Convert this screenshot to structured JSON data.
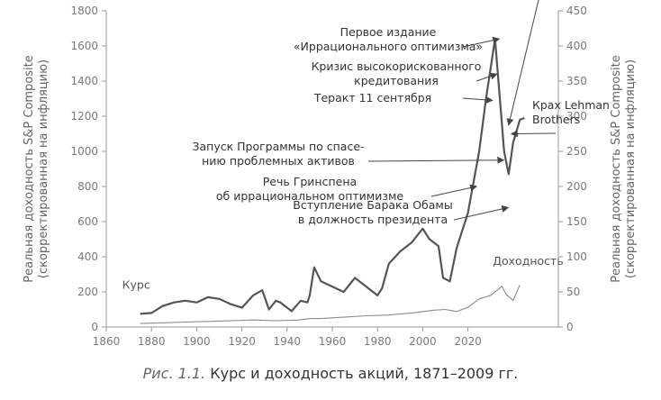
{
  "colors": {
    "axis": "#9a9a9a",
    "price_line": "#555555",
    "yield_line": "#8a8a8a",
    "arrow": "#444444"
  },
  "caption": {
    "figure": "Рис. 1.1.",
    "text": "Курс и доходность акций, 1871–2009 гг."
  },
  "chart_data": {
    "type": "line",
    "x_ticks": [
      "1860",
      "1880",
      "1900",
      "1920",
      "1940",
      "1960",
      "1980",
      "2000",
      "2020"
    ],
    "y_left_ticks": [
      "0",
      "200",
      "400",
      "600",
      "800",
      "1000",
      "1200",
      "1400",
      "1600",
      "1800"
    ],
    "y_right_ticks": [
      "0",
      "50",
      "100",
      "150",
      "200",
      "250",
      "300",
      "350",
      "400",
      "450"
    ],
    "y_left_label": [
      "Реальная доходность S&P Composite",
      "(скорректированная на инфляцию)"
    ],
    "y_right_label": [
      "Реальная доходность S&P Composite",
      "(скорректированная на инфляцию)"
    ],
    "xlim": [
      1860,
      2060
    ],
    "y_left_lim": [
      0,
      1800
    ],
    "y_right_lim": [
      0,
      450
    ],
    "series": [
      {
        "name": "Курс",
        "axis": "left",
        "x": [
          1875,
          1880,
          1885,
          1890,
          1895,
          1900,
          1905,
          1910,
          1915,
          1920,
          1925,
          1929,
          1932,
          1935,
          1937,
          1942,
          1946,
          1949,
          1950,
          1952,
          1955,
          1960,
          1965,
          1970,
          1975,
          1980,
          1982,
          1985,
          1990,
          1995,
          2000,
          2003,
          2007,
          2009,
          2012,
          2015,
          2020,
          2025,
          2028,
          2032,
          2036,
          2038,
          2040,
          2043,
          2045
        ],
        "y": [
          75,
          80,
          120,
          140,
          150,
          140,
          170,
          160,
          130,
          110,
          180,
          210,
          100,
          150,
          140,
          90,
          150,
          140,
          180,
          340,
          260,
          230,
          200,
          280,
          230,
          180,
          220,
          360,
          430,
          480,
          560,
          500,
          460,
          280,
          260,
          450,
          650,
          1000,
          1300,
          1640,
          1000,
          870,
          1050,
          1180,
          1190
        ]
      },
      {
        "name": "Доходность",
        "axis": "right",
        "x": [
          1875,
          1885,
          1895,
          1905,
          1915,
          1925,
          1935,
          1945,
          1950,
          1955,
          1965,
          1975,
          1985,
          1995,
          2005,
          2010,
          2015,
          2020,
          2025,
          2030,
          2035,
          2037,
          2040,
          2043
        ],
        "y": [
          5,
          6,
          7,
          8,
          9,
          10,
          9,
          10,
          12,
          12,
          14,
          16,
          17,
          20,
          24,
          25,
          22,
          28,
          40,
          45,
          58,
          46,
          38,
          60
        ]
      }
    ],
    "annotations": [
      {
        "lines": [
          "Первое издание",
          "«Иррационального оптимизма»"
        ],
        "x": 2035,
        "y": 1640
      },
      {
        "lines": [
          "Кризис высокорискованного",
          "кредитования"
        ],
        "x": 2034,
        "y": 1440
      },
      {
        "lines": [
          "Теракт 11 сентября"
        ],
        "x": 2032,
        "y": 1290
      },
      {
        "lines": [
          "Крах Lehman",
          "Brothers"
        ],
        "x": 2038,
        "y": 1100
      },
      {
        "lines": [
          "Запуск Программы по спасе-",
          "нию проблемных активов"
        ],
        "x": 2037,
        "y": 950
      },
      {
        "lines": [
          "Речь Гринспена",
          "об иррациональном оптимизме"
        ],
        "x": 2025,
        "y": 800
      },
      {
        "lines": [
          "Вступление Барака Обамы",
          "в должность президента"
        ],
        "x": 2039,
        "y": 680
      }
    ]
  }
}
